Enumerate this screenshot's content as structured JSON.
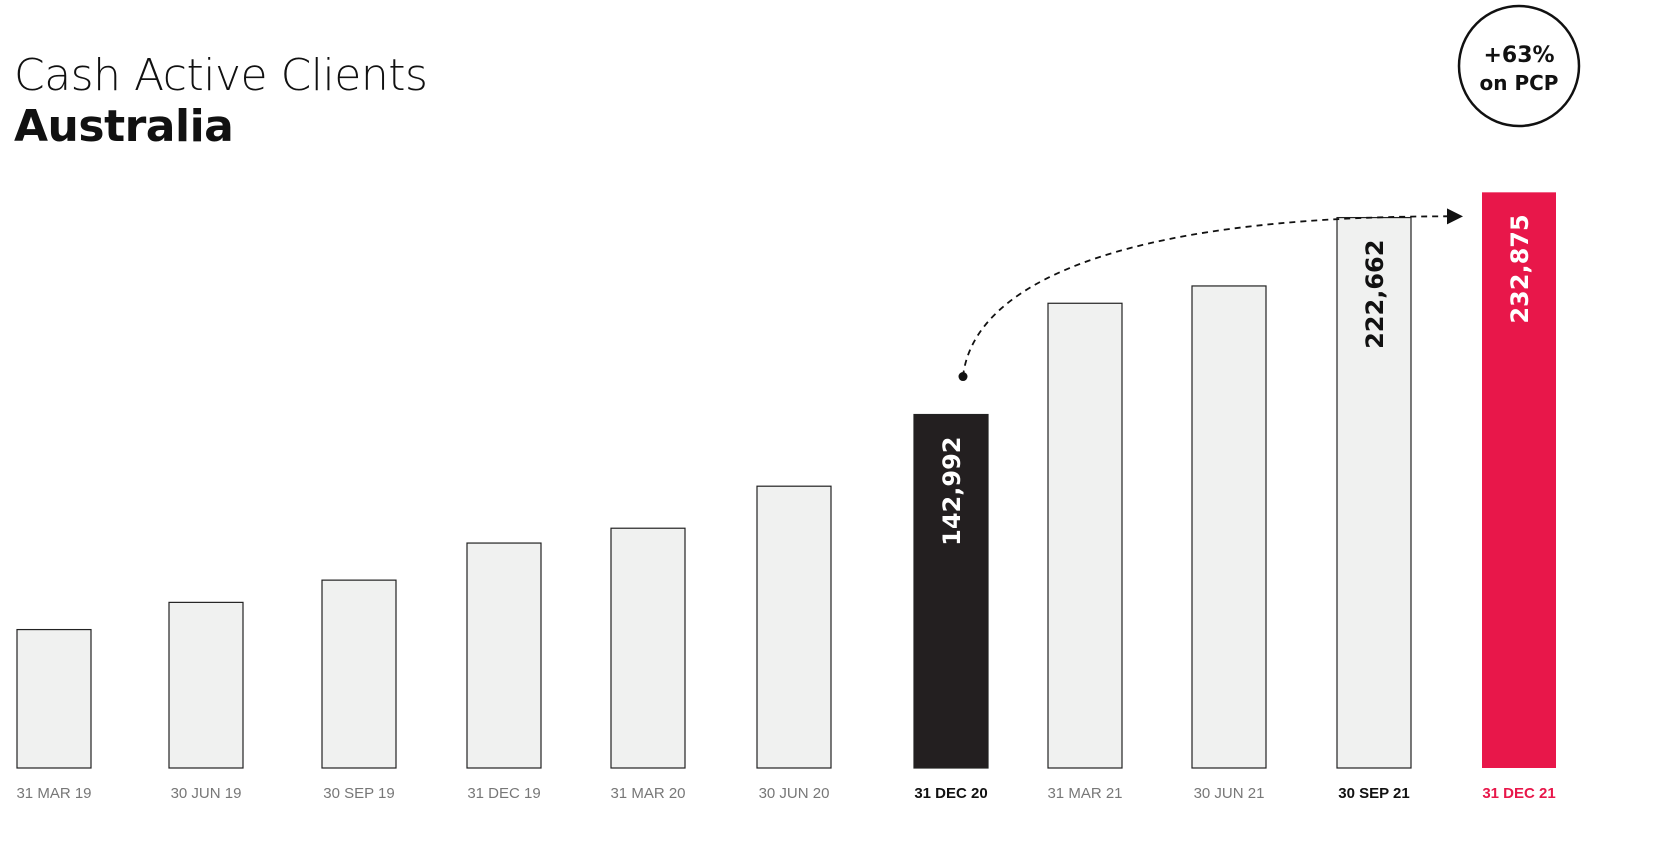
{
  "title": {
    "line1": "Cash Active Clients",
    "line2": "Australia"
  },
  "callout": {
    "line1": "+63%",
    "line2": "on PCP"
  },
  "colors": {
    "default_fill": "#f0f1f0",
    "default_text": "#777777",
    "highlight_dark": "#231f20",
    "highlight_accent": "#e8174a",
    "text_dark": "#111111"
  },
  "chart_data": {
    "type": "bar",
    "title": "Cash Active Clients Australia",
    "categories": [
      "31 MAR 19",
      "30 JUN 19",
      "30 SEP 19",
      "31 DEC 19",
      "31 MAR 20",
      "30 JUN 20",
      "31 DEC 20",
      "31 MAR 21",
      "30 JUN 21",
      "30 SEP 21",
      "31 DEC 21"
    ],
    "values": [
      56000,
      67000,
      76000,
      91000,
      97000,
      114000,
      142992,
      188000,
      195000,
      222662,
      232875
    ],
    "data_labels": [
      "",
      "",
      "",
      "",
      "",
      "",
      "142,992",
      "",
      "",
      "222,662",
      "232,875"
    ],
    "styles": [
      "default",
      "default",
      "default",
      "default",
      "default",
      "default",
      "dark",
      "default",
      "default",
      "default",
      "accent"
    ],
    "bold_categories": [
      "31 DEC 20",
      "30 SEP 21",
      "31 DEC 21"
    ],
    "ylim": [
      0,
      250000
    ],
    "grid": false,
    "annotation": {
      "from": "31 DEC 20",
      "to": "31 DEC 21",
      "style": "dashed-arrow"
    }
  }
}
